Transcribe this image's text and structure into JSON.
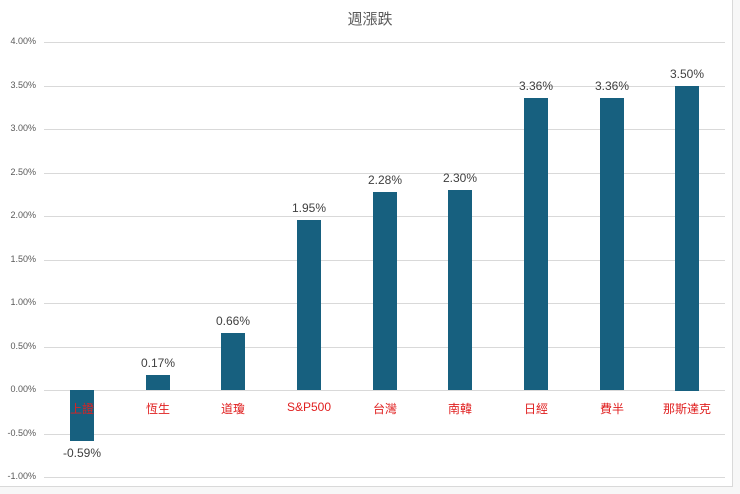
{
  "chart_data": {
    "type": "bar",
    "title": "週漲跌",
    "xlabel": "",
    "ylabel": "",
    "categories": [
      "上證",
      "恆生",
      "道瓊",
      "S&P500",
      "台灣",
      "南韓",
      "日經",
      "費半",
      "那斯達克"
    ],
    "values": [
      -0.59,
      0.17,
      0.66,
      1.95,
      2.28,
      2.3,
      3.36,
      3.36,
      3.5
    ],
    "value_labels": [
      "-0.59%",
      "0.17%",
      "0.66%",
      "1.95%",
      "2.28%",
      "2.30%",
      "3.36%",
      "3.36%",
      "3.50%"
    ],
    "ylim": [
      -1.0,
      4.0
    ],
    "yticks": [
      "4.00%",
      "3.50%",
      "3.00%",
      "2.50%",
      "2.00%",
      "1.50%",
      "1.00%",
      "0.50%",
      "0.00%",
      "-0.50%",
      "-1.00%"
    ],
    "ytick_values": [
      4.0,
      3.5,
      3.0,
      2.5,
      2.0,
      1.5,
      1.0,
      0.5,
      0.0,
      -0.5,
      -1.0
    ],
    "grid": true,
    "legend": null,
    "unit": "%"
  },
  "colors": {
    "bar": "#17607f",
    "category_label": "#e02020",
    "value_label": "#404040",
    "axis_text": "#595959",
    "grid": "#d9d9d9"
  }
}
